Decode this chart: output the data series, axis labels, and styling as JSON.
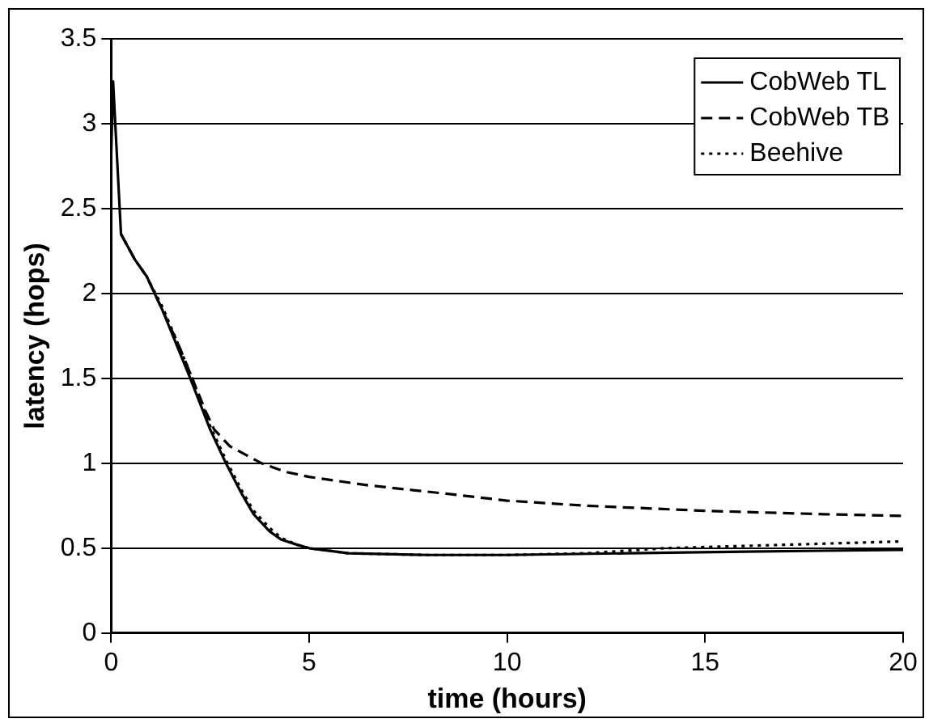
{
  "chart_data": {
    "type": "line",
    "xlabel": "time (hours)",
    "ylabel": "latency (hops)",
    "xlim": [
      0,
      20
    ],
    "xticks": [
      0,
      5,
      10,
      15,
      20
    ],
    "ylim": [
      0,
      3.5
    ],
    "yticks": [
      0,
      0.5,
      1,
      1.5,
      2,
      2.5,
      3,
      3.5
    ],
    "grid": "y",
    "legend": "top right",
    "marker": "none",
    "series": [
      {
        "name": "CobWeb TL",
        "color": "#000000",
        "line_style": "solid",
        "x": [
          0,
          0.05,
          0.15,
          0.25,
          0.6,
          0.9,
          1.3,
          2.0,
          2.5,
          2.9,
          3.3,
          3.6,
          4.0,
          4.3,
          4.7,
          5,
          6,
          8,
          10,
          13,
          16,
          20
        ],
        "values": [
          2.8,
          3.25,
          2.8,
          2.35,
          2.2,
          2.1,
          1.9,
          1.5,
          1.2,
          1.0,
          0.82,
          0.7,
          0.6,
          0.55,
          0.52,
          0.5,
          0.47,
          0.46,
          0.46,
          0.47,
          0.48,
          0.49
        ]
      },
      {
        "name": "CobWeb TB",
        "color": "#000000",
        "line_style": "dashed",
        "x": [
          0.25,
          0.6,
          0.9,
          1.3,
          1.7,
          2.05,
          2.4,
          2.6,
          3.0,
          3.4,
          3.8,
          4.4,
          5,
          6.5,
          8.5,
          10,
          12,
          15,
          18,
          20
        ],
        "values": [
          2.35,
          2.2,
          2.1,
          1.9,
          1.7,
          1.5,
          1.3,
          1.2,
          1.1,
          1.05,
          1.0,
          0.95,
          0.92,
          0.87,
          0.82,
          0.78,
          0.75,
          0.72,
          0.7,
          0.69
        ]
      },
      {
        "name": "Beehive",
        "color": "#000000",
        "line_style": "dotted",
        "x": [
          0.25,
          0.6,
          0.9,
          1.3,
          2.0,
          2.5,
          2.9,
          3.3,
          3.6,
          4.0,
          4.3,
          4.7,
          5,
          6,
          8,
          10,
          12,
          14,
          17,
          20
        ],
        "values": [
          2.35,
          2.2,
          2.1,
          1.92,
          1.53,
          1.22,
          1.02,
          0.84,
          0.72,
          0.62,
          0.56,
          0.52,
          0.5,
          0.47,
          0.46,
          0.46,
          0.47,
          0.5,
          0.52,
          0.54
        ]
      }
    ]
  }
}
